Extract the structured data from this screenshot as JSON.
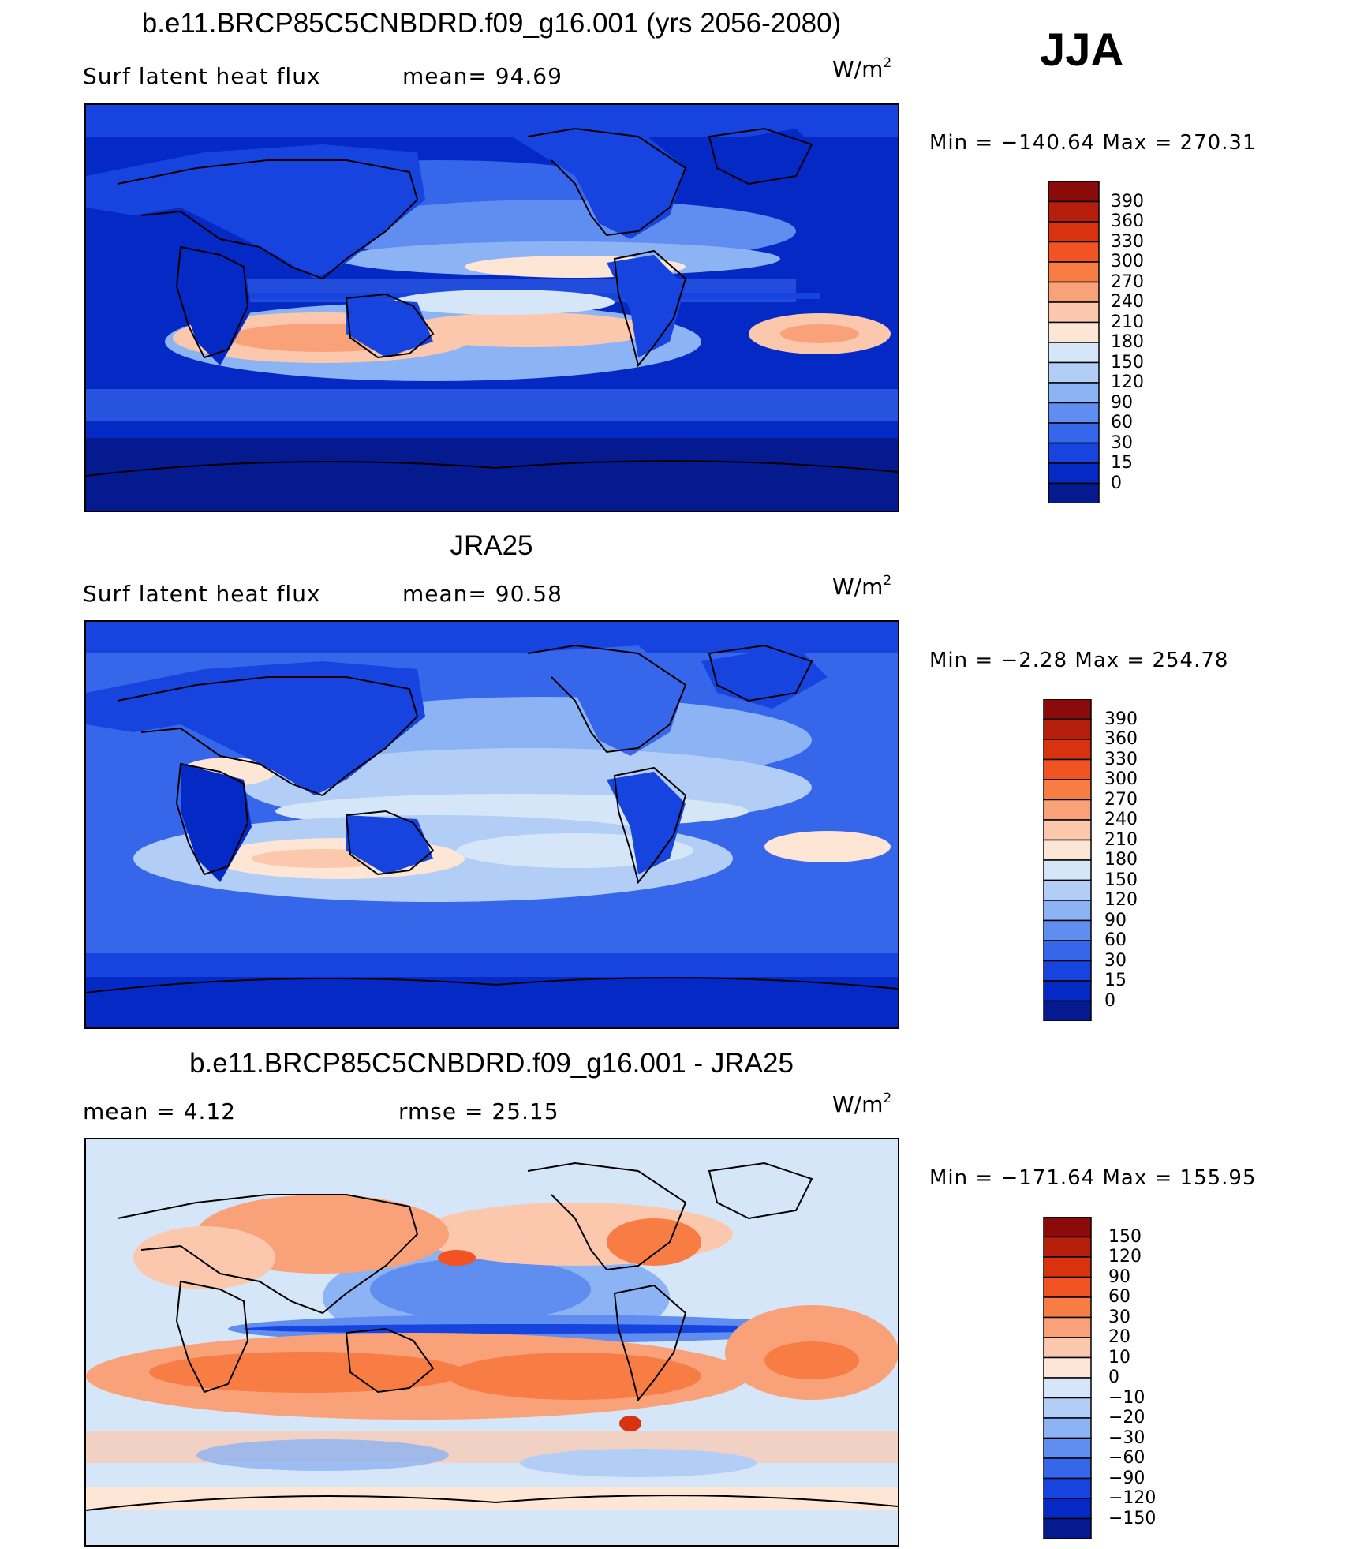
{
  "season": "JJA",
  "units_base": "W/m",
  "units_exp": "2",
  "panels": [
    {
      "title": "b.e11.BRCP85C5CNBDRD.f09_g16.001 (yrs 2056-2080)",
      "left_label": "Surf  latent  heat  flux",
      "mid_label": "mean=   94.69",
      "minmax": "Min  =  −140.64  Max  =  270.31",
      "colorbar": {
        "levels": [
          "390",
          "360",
          "330",
          "300",
          "270",
          "240",
          "210",
          "180",
          "150",
          "120",
          "90",
          "60",
          "30",
          "15",
          "0"
        ],
        "colors": [
          "#8b0a0a",
          "#b51f0c",
          "#d8320f",
          "#f25322",
          "#f87d45",
          "#f9a27a",
          "#fbc8ad",
          "#fde6d6",
          "#d5e6f8",
          "#b2cdf6",
          "#8cb3f3",
          "#5f8df0",
          "#3666ea",
          "#1744df",
          "#0529c4",
          "#041a8e"
        ]
      }
    },
    {
      "title": "JRA25",
      "left_label": "Surf  latent  heat  flux",
      "mid_label": "mean=   90.58",
      "minmax": "Min  =    −2.28  Max  =  254.78",
      "colorbar": {
        "levels": [
          "390",
          "360",
          "330",
          "300",
          "270",
          "240",
          "210",
          "180",
          "150",
          "120",
          "90",
          "60",
          "30",
          "15",
          "0"
        ],
        "colors": [
          "#8b0a0a",
          "#b51f0c",
          "#d8320f",
          "#f25322",
          "#f87d45",
          "#f9a27a",
          "#fbc8ad",
          "#fde6d6",
          "#d5e6f8",
          "#b2cdf6",
          "#8cb3f3",
          "#5f8df0",
          "#3666ea",
          "#1744df",
          "#0529c4",
          "#041a8e"
        ]
      }
    },
    {
      "title": "b.e11.BRCP85C5CNBDRD.f09_g16.001 - JRA25",
      "left_label": "mean  =     4.12",
      "mid_label": "rmse  =    25.15",
      "minmax": "Min  =  −171.64  Max  =  155.95",
      "colorbar": {
        "levels": [
          "150",
          "120",
          "90",
          "60",
          "30",
          "20",
          "10",
          "0",
          "−10",
          "−20",
          "−30",
          "−60",
          "−90",
          "−120",
          "−150"
        ],
        "colors": [
          "#8b0a0a",
          "#b51f0c",
          "#d8320f",
          "#f25322",
          "#f87d45",
          "#f9a27a",
          "#fbc8ad",
          "#fde6d6",
          "#d5e6f8",
          "#b2cdf6",
          "#8cb3f3",
          "#5f8df0",
          "#3666ea",
          "#1744df",
          "#0529c4",
          "#041a8e"
        ]
      }
    }
  ],
  "chart_data": [
    {
      "type": "heatmap",
      "title": "b.e11.BRCP85C5CNBDRD.f09_g16.001 (yrs 2056-2080)",
      "subtitle": "Surf latent heat flux",
      "mean": 94.69,
      "min": -140.64,
      "max": 270.31,
      "levels": [
        0,
        15,
        30,
        60,
        90,
        120,
        150,
        180,
        210,
        240,
        270,
        300,
        330,
        360,
        390
      ]
    },
    {
      "type": "heatmap",
      "title": "JRA25",
      "subtitle": "Surf latent heat flux",
      "mean": 90.58,
      "min": -2.28,
      "max": 254.78,
      "levels": [
        0,
        15,
        30,
        60,
        90,
        120,
        150,
        180,
        210,
        240,
        270,
        300,
        330,
        360,
        390
      ]
    },
    {
      "type": "heatmap",
      "title": "b.e11.BRCP85C5CNBDRD.f09_g16.001 - JRA25",
      "mean": 4.12,
      "rmse": 25.15,
      "min": -171.64,
      "max": 155.95,
      "levels": [
        -150,
        -120,
        -90,
        -60,
        -30,
        -20,
        -10,
        0,
        10,
        20,
        30,
        60,
        90,
        120,
        150
      ]
    }
  ]
}
